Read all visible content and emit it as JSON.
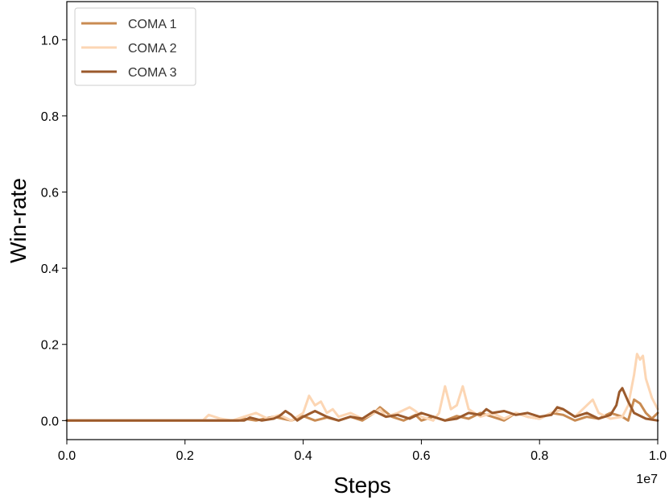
{
  "chart_data": {
    "type": "line",
    "xlabel": "Steps",
    "ylabel": "Win-rate",
    "x_offset_label": "1e7",
    "xlim": [
      0.0,
      1.0
    ],
    "ylim": [
      -0.05,
      1.1
    ],
    "x_ticks": [
      0.0,
      0.2,
      0.4,
      0.6,
      0.8,
      1.0
    ],
    "x_tick_labels": [
      "0.0",
      "0.2",
      "0.4",
      "0.6",
      "0.8",
      "1.0"
    ],
    "y_ticks": [
      0.0,
      0.2,
      0.4,
      0.6,
      0.8,
      1.0
    ],
    "y_tick_labels": [
      "0.0",
      "0.2",
      "0.4",
      "0.6",
      "0.8",
      "1.0"
    ],
    "grid": false,
    "legend_position": "top-left",
    "series": [
      {
        "name": "COMA 1",
        "color": "#c98b52",
        "x": [
          0.0,
          0.29,
          0.3,
          0.32,
          0.35,
          0.38,
          0.4,
          0.42,
          0.44,
          0.46,
          0.48,
          0.5,
          0.52,
          0.53,
          0.55,
          0.57,
          0.59,
          0.6,
          0.62,
          0.64,
          0.66,
          0.68,
          0.7,
          0.72,
          0.74,
          0.76,
          0.78,
          0.8,
          0.82,
          0.84,
          0.86,
          0.88,
          0.9,
          0.92,
          0.94,
          0.95,
          0.96,
          0.97,
          0.98,
          0.99,
          1.0
        ],
        "y": [
          0.0,
          0.0,
          0.005,
          0.0,
          0.01,
          0.0,
          0.012,
          0.0,
          0.008,
          0.0,
          0.01,
          0.0,
          0.02,
          0.035,
          0.01,
          0.0,
          0.015,
          0.0,
          0.01,
          0.0,
          0.012,
          0.005,
          0.02,
          0.01,
          0.0,
          0.02,
          0.01,
          0.005,
          0.02,
          0.015,
          0.0,
          0.01,
          0.005,
          0.02,
          0.01,
          0.0,
          0.055,
          0.045,
          0.02,
          0.005,
          0.02
        ]
      },
      {
        "name": "COMA 2",
        "color": "#fcd6b4",
        "x": [
          0.0,
          0.23,
          0.24,
          0.26,
          0.28,
          0.3,
          0.32,
          0.34,
          0.36,
          0.38,
          0.4,
          0.41,
          0.42,
          0.43,
          0.44,
          0.45,
          0.46,
          0.48,
          0.5,
          0.52,
          0.53,
          0.54,
          0.56,
          0.58,
          0.59,
          0.6,
          0.62,
          0.63,
          0.64,
          0.65,
          0.66,
          0.67,
          0.68,
          0.7,
          0.72,
          0.74,
          0.76,
          0.78,
          0.8,
          0.82,
          0.84,
          0.86,
          0.88,
          0.89,
          0.9,
          0.92,
          0.94,
          0.95,
          0.96,
          0.965,
          0.97,
          0.975,
          0.98,
          0.99,
          1.0
        ],
        "y": [
          0.0,
          0.0,
          0.015,
          0.005,
          0.0,
          0.01,
          0.02,
          0.005,
          0.015,
          0.0,
          0.02,
          0.065,
          0.04,
          0.05,
          0.02,
          0.03,
          0.01,
          0.02,
          0.005,
          0.02,
          0.03,
          0.01,
          0.02,
          0.035,
          0.025,
          0.01,
          0.0,
          0.02,
          0.09,
          0.03,
          0.04,
          0.09,
          0.03,
          0.01,
          0.02,
          0.005,
          0.02,
          0.01,
          0.005,
          0.02,
          0.03,
          0.01,
          0.04,
          0.055,
          0.02,
          0.005,
          0.01,
          0.04,
          0.12,
          0.175,
          0.16,
          0.17,
          0.11,
          0.06,
          0.03
        ]
      },
      {
        "name": "COMA 3",
        "color": "#9b5a2c",
        "x": [
          0.0,
          0.3,
          0.31,
          0.33,
          0.35,
          0.36,
          0.37,
          0.38,
          0.39,
          0.4,
          0.42,
          0.44,
          0.46,
          0.48,
          0.5,
          0.52,
          0.54,
          0.56,
          0.58,
          0.6,
          0.62,
          0.64,
          0.66,
          0.68,
          0.7,
          0.71,
          0.72,
          0.74,
          0.76,
          0.78,
          0.8,
          0.82,
          0.83,
          0.84,
          0.86,
          0.88,
          0.9,
          0.92,
          0.93,
          0.935,
          0.94,
          0.95,
          0.96,
          0.98,
          1.0
        ],
        "y": [
          0.0,
          0.0,
          0.008,
          0.0,
          0.005,
          0.012,
          0.025,
          0.015,
          0.0,
          0.01,
          0.025,
          0.01,
          0.0,
          0.01,
          0.005,
          0.025,
          0.01,
          0.015,
          0.005,
          0.02,
          0.01,
          0.0,
          0.005,
          0.02,
          0.015,
          0.03,
          0.02,
          0.025,
          0.015,
          0.02,
          0.01,
          0.015,
          0.035,
          0.03,
          0.01,
          0.02,
          0.005,
          0.015,
          0.04,
          0.075,
          0.085,
          0.05,
          0.02,
          0.005,
          0.0
        ]
      }
    ]
  }
}
